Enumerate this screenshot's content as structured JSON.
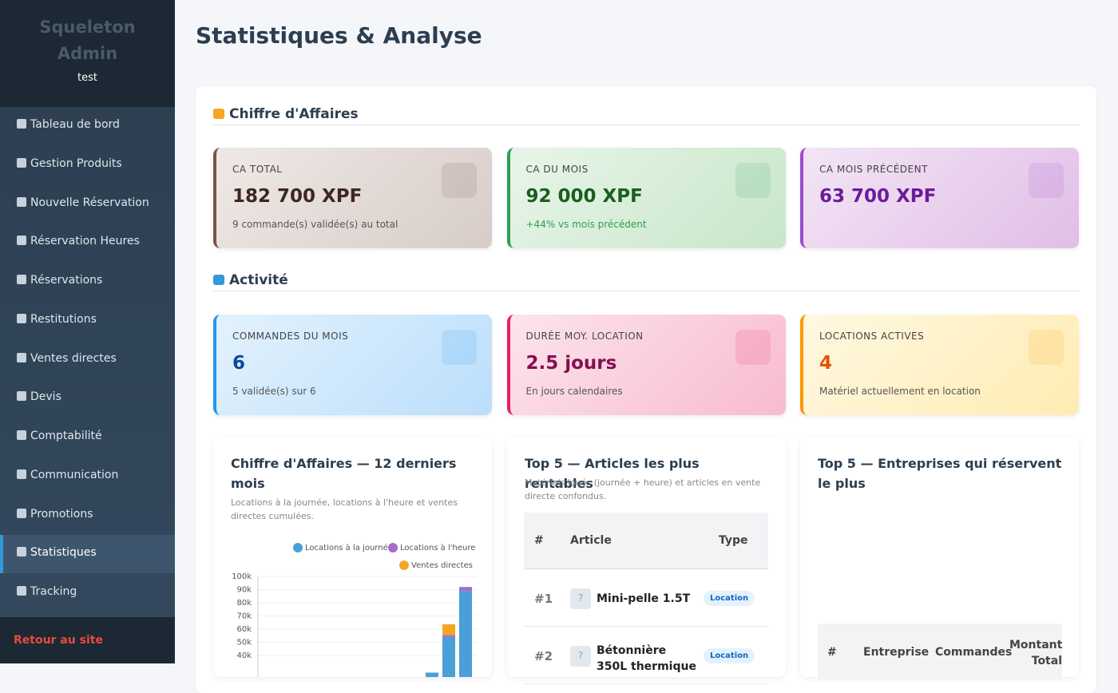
{
  "sidebar": {
    "brand": "Squeleton Admin",
    "user": "test",
    "menu": [
      "Tableau de bord",
      "Gestion Produits",
      "Nouvelle Réservation",
      "Réservation Heures",
      "Réservations",
      "Restitutions",
      "Ventes directes",
      "Devis",
      "Comptabilité",
      "Communication",
      "Promotions",
      "Statistiques",
      "Tracking"
    ],
    "back": "Retour au site"
  },
  "header": {
    "title": "Statistiques & Analyse"
  },
  "revenue": {
    "title": "Chiffre d'Affaires",
    "cards": [
      {
        "label": "CA TOTAL",
        "value": "182 700 XPF",
        "note": "9 commande(s) validée(s) au total"
      },
      {
        "label": "CA DU MOIS",
        "value": "92 000 XPF",
        "note": "+44% vs mois précédent"
      },
      {
        "label": "CA MOIS PRÉCÉDENT",
        "value": "63 700 XPF"
      }
    ]
  },
  "activity": {
    "title": "Activité",
    "cards": [
      {
        "label": "COMMANDES DU MOIS",
        "value": "6",
        "note": "5 validée(s) sur 6"
      },
      {
        "label": "DURÉE MOY. LOCATION",
        "value": "2.5 jours",
        "note": "En jours calendaires"
      },
      {
        "label": "LOCATIONS ACTIVES",
        "value": "4",
        "note": "Matériel actuellement en location"
      }
    ]
  },
  "chart_data": {
    "type": "stacked-bar",
    "title": "Chiffre d'Affaires — 12 derniers mois",
    "subtitle": "Locations à la journée, locations à l'heure et ventes directes cumulées.",
    "categories": [
      null,
      null,
      null,
      null,
      null,
      null,
      null,
      null,
      null,
      null,
      null,
      null
    ],
    "series": [
      {
        "name": "Locations à la journée",
        "color": "#4a9fd8",
        "values": [
          0,
          0,
          0,
          0,
          0,
          0,
          0,
          0,
          0,
          27000,
          54000,
          89000
        ]
      },
      {
        "name": "Locations à l'heure",
        "color": "#a66cc7",
        "values": [
          0,
          0,
          0,
          0,
          0,
          0,
          0,
          0,
          0,
          0,
          1500,
          3000
        ]
      },
      {
        "name": "Ventes directes",
        "color": "#f5a623",
        "values": [
          0,
          0,
          0,
          0,
          0,
          0,
          0,
          0,
          0,
          0,
          8200,
          0
        ]
      }
    ],
    "ylim": [
      0,
      100000
    ],
    "yticks": [
      {
        "value": 40000,
        "label": "40k"
      },
      {
        "value": 50000,
        "label": "50k"
      },
      {
        "value": 60000,
        "label": "60k"
      },
      {
        "value": 70000,
        "label": "70k"
      },
      {
        "value": 80000,
        "label": "80k"
      },
      {
        "value": 90000,
        "label": "90k"
      },
      {
        "value": 100000,
        "label": "100k"
      }
    ],
    "grid": true
  },
  "top_articles": {
    "title": "Top 5 — Articles les plus rentables",
    "subtitle": "Matériels loués (journée + heure) et articles en vente directe confondus.",
    "columns": [
      "#",
      "Article",
      "Type"
    ],
    "rows": [
      [
        "#1",
        "?",
        "Mini-pelle 1.5T",
        "Location"
      ],
      [
        "#2",
        "?",
        "Bétonnière 350L thermique",
        "Location"
      ]
    ]
  },
  "top_companies": {
    "title": "Top 5 — Entreprises qui réservent le plus",
    "columns": [
      "#",
      "Entreprise",
      "Commandes",
      "Montant Total"
    ]
  }
}
